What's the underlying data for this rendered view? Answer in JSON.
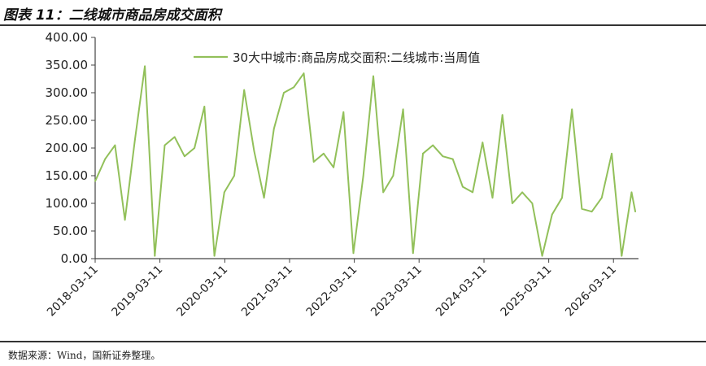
{
  "figure_title": "图表 11：二线城市商品房成交面积",
  "source_note": "数据来源：Wind，国新证券整理。",
  "chart_data": {
    "type": "line",
    "ylim": [
      0,
      400
    ],
    "y_ticks": [
      "0.00",
      "50.00",
      "100.00",
      "150.00",
      "200.00",
      "250.00",
      "300.00",
      "350.00",
      "400.00"
    ],
    "x_ticks": [
      "2018-03-11",
      "2019-03-11",
      "2020-03-11",
      "2021-03-11",
      "2022-03-11",
      "2023-03-11",
      "2024-03-11",
      "2025-03-11",
      "2026-03-11"
    ],
    "x_range": [
      "2018-03-11",
      "2026-07-12"
    ],
    "grid": false,
    "legend_position": "top",
    "color": "#92C05A",
    "series": [
      {
        "name": "30大中城市:商品房成交面积:二线城市:当周值",
        "x": [
          "2018-03-11",
          "2018-05-06",
          "2018-07-01",
          "2018-08-26",
          "2018-10-21",
          "2018-12-16",
          "2019-02-10",
          "2019-04-07",
          "2019-06-02",
          "2019-07-28",
          "2019-09-22",
          "2019-11-17",
          "2020-01-12",
          "2020-03-08",
          "2020-05-03",
          "2020-06-28",
          "2020-08-23",
          "2020-10-18",
          "2020-12-13",
          "2021-02-07",
          "2021-04-04",
          "2021-05-30",
          "2021-07-25",
          "2021-09-19",
          "2021-11-14",
          "2022-01-09",
          "2022-03-06",
          "2022-05-01",
          "2022-06-26",
          "2022-08-21",
          "2022-10-16",
          "2022-12-11",
          "2023-02-05",
          "2023-04-02",
          "2023-05-28",
          "2023-07-23",
          "2023-09-17",
          "2023-11-12",
          "2024-01-07",
          "2024-03-03",
          "2024-04-28",
          "2024-06-23",
          "2024-08-18",
          "2024-10-13",
          "2024-12-08",
          "2025-02-02",
          "2025-03-30",
          "2025-05-25",
          "2025-07-20",
          "2025-09-14",
          "2025-11-09",
          "2026-01-04",
          "2026-03-01",
          "2026-04-26",
          "2026-06-21",
          "2026-07-12"
        ],
        "values": [
          140,
          180,
          205,
          70,
          215,
          348,
          5,
          205,
          220,
          185,
          200,
          275,
          5,
          120,
          150,
          305,
          195,
          110,
          235,
          300,
          310,
          335,
          175,
          190,
          165,
          265,
          10,
          150,
          330,
          120,
          150,
          270,
          10,
          190,
          205,
          185,
          180,
          130,
          120,
          210,
          110,
          260,
          100,
          120,
          100,
          5,
          80,
          110,
          270,
          90,
          85,
          110,
          190,
          5,
          120,
          85
        ]
      }
    ]
  }
}
